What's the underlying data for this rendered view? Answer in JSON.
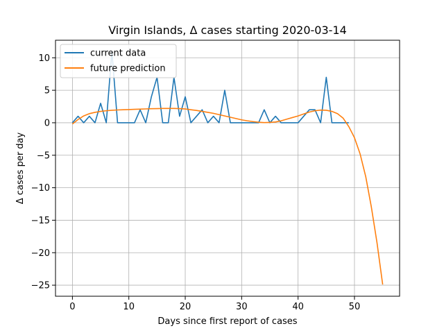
{
  "chart_data": {
    "type": "line",
    "title": "Virgin Islands, Δ cases starting 2020-03-14",
    "xlabel": "Days since first report of cases",
    "ylabel": "Δ cases per day",
    "xlim": [
      -3,
      58
    ],
    "ylim": [
      -26.7,
      12.7
    ],
    "xticks": [
      0,
      10,
      20,
      30,
      40,
      50
    ],
    "yticks": [
      10,
      5,
      0,
      -5,
      -10,
      -15,
      -20,
      -25
    ],
    "grid": true,
    "legend_position": "top-left",
    "series": [
      {
        "name": "current data",
        "color": "#1f77b4",
        "x": [
          0,
          1,
          2,
          3,
          4,
          5,
          6,
          7,
          8,
          9,
          10,
          11,
          12,
          13,
          14,
          15,
          16,
          17,
          18,
          19,
          20,
          21,
          22,
          23,
          24,
          25,
          26,
          27,
          28,
          29,
          30,
          31,
          32,
          33,
          34,
          35,
          36,
          37,
          38,
          39,
          40,
          41,
          42,
          43,
          44,
          45,
          46,
          47,
          48,
          49
        ],
        "values": [
          0,
          1,
          0,
          1,
          0,
          3,
          0,
          11,
          0,
          0,
          0,
          0,
          2,
          0,
          4,
          7,
          0,
          0,
          7,
          1,
          4,
          0,
          1,
          2,
          0,
          1,
          0,
          5,
          0,
          0,
          0,
          0,
          0,
          0,
          2,
          0,
          1,
          0,
          0,
          0,
          0,
          1,
          2,
          2,
          0,
          7,
          0,
          0,
          0,
          0
        ]
      },
      {
        "name": "future prediction",
        "color": "#ff7f0e",
        "x": [
          0,
          1,
          2,
          3,
          4,
          5,
          6,
          7,
          8,
          9,
          10,
          11,
          12,
          13,
          14,
          15,
          16,
          17,
          18,
          19,
          20,
          21,
          22,
          23,
          24,
          25,
          26,
          27,
          28,
          29,
          30,
          31,
          32,
          33,
          34,
          35,
          36,
          37,
          38,
          39,
          40,
          41,
          42,
          43,
          44,
          45,
          46,
          47,
          48,
          49,
          50,
          51,
          52,
          53,
          54,
          55
        ],
        "values": [
          -0.2,
          0.5,
          1.05,
          1.4,
          1.6,
          1.75,
          1.85,
          1.92,
          1.97,
          2.0,
          2.03,
          2.07,
          2.1,
          2.13,
          2.16,
          2.18,
          2.2,
          2.2,
          2.2,
          2.18,
          2.12,
          2.0,
          1.9,
          1.75,
          1.6,
          1.45,
          1.25,
          1.05,
          0.85,
          0.65,
          0.45,
          0.3,
          0.18,
          0.08,
          0.03,
          0.05,
          0.12,
          0.3,
          0.55,
          0.8,
          1.05,
          1.35,
          1.65,
          1.85,
          1.95,
          1.92,
          1.75,
          1.4,
          0.7,
          -0.6,
          -2.3,
          -4.8,
          -8.3,
          -13.0,
          -18.5,
          -24.9
        ]
      }
    ]
  }
}
